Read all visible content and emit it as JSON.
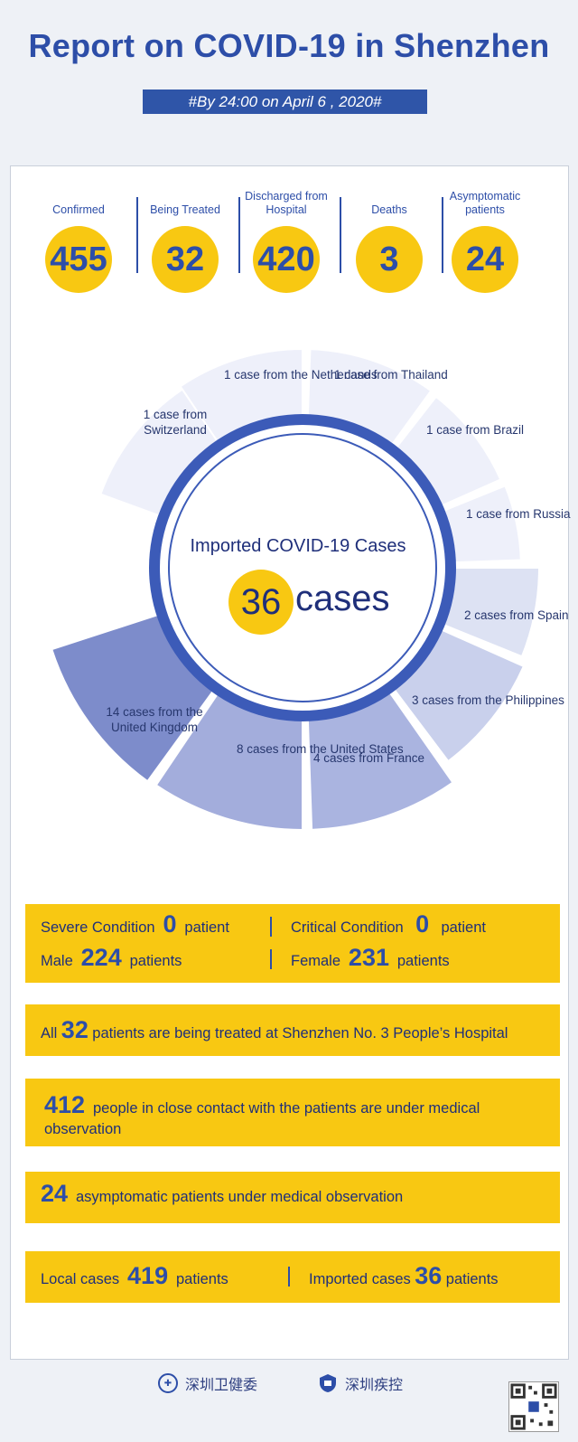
{
  "title": "Report on COVID-19 in Shenzhen",
  "date": "#By 24:00 on April 6 , 2020#",
  "stats": [
    {
      "label": "Confirmed",
      "value": "455"
    },
    {
      "label": "Being Treated",
      "value": "32"
    },
    {
      "label": "Discharged from Hospital",
      "value": "420"
    },
    {
      "label": "Deaths",
      "value": "3"
    },
    {
      "label": "Asymptomatic patients",
      "value": "24"
    }
  ],
  "imported": {
    "title": "Imported COVID-19 Cases",
    "count": "36",
    "unit": "cases",
    "segments": [
      {
        "label": "1 case from the Netherlands",
        "cases": 1,
        "color": "#eef0fa"
      },
      {
        "label": "1 case from Thailand",
        "cases": 1,
        "color": "#eef0fa"
      },
      {
        "label": "1 case from Brazil",
        "cases": 1,
        "color": "#eef0fa"
      },
      {
        "label": "1 case from Russia",
        "cases": 1,
        "color": "#eef0fa"
      },
      {
        "label": "2 cases from Spain",
        "cases": 2,
        "color": "#dde2f3"
      },
      {
        "label": "3 cases from the Philippines",
        "cases": 3,
        "color": "#c9d0ec"
      },
      {
        "label": "4 cases from France",
        "cases": 4,
        "color": "#aab4e0"
      },
      {
        "label": "8 cases from the United States",
        "cases": 8,
        "color": "#a3addc"
      },
      {
        "label": "14 cases from the United Kingdom",
        "cases": 14,
        "color": "#7d8ccb"
      },
      {
        "label": "1 case from Switzerland",
        "cases": 1,
        "color": "#eef0fa"
      }
    ]
  },
  "condition": {
    "severe_label": "Severe Condition",
    "severe_value": "0",
    "severe_unit": "patient",
    "critical_label": "Critical Condition",
    "critical_value": "0",
    "critical_unit": "patient",
    "male_label": "Male",
    "male_value": "224",
    "male_unit": "patients",
    "female_label": "Female",
    "female_value": "231",
    "female_unit": "patients"
  },
  "treated": {
    "pre": "All",
    "value": "32",
    "post": "patients are being treated at Shenzhen No. 3 People’s Hospital"
  },
  "contacts": {
    "value": "412",
    "line1": "people in close contact with the patients are under medical",
    "line2": "observation"
  },
  "asymptomatic": {
    "value": "24",
    "text": "asymptomatic patients under medical observation"
  },
  "origin": {
    "local_label": "Local cases",
    "local_value": "419",
    "local_unit": "patients",
    "imported_label": "Imported cases",
    "imported_value": "36",
    "imported_unit": "patients"
  },
  "footer": {
    "org1": "深圳卫健委",
    "org2": "深圳疾控"
  },
  "colors": {
    "blue": "#2d4ea8",
    "yellow": "#f8c812"
  }
}
